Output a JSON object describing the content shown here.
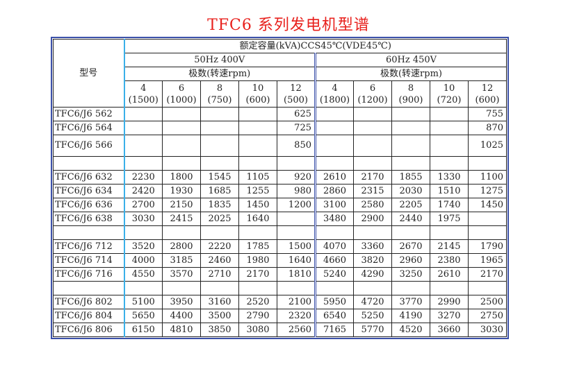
{
  "title": "TFC6  系列发电机型谱",
  "header": {
    "model": "型号",
    "capacity": "额定容量(kVA)CCS45℃(VDE45℃)",
    "freq50": "50Hz  400V",
    "freq60": "60Hz  450V",
    "poles50": "极数(转速rpm)",
    "poles60": "极数(转速rpm)",
    "cols50": [
      [
        "4",
        "(1500)"
      ],
      [
        "6",
        "(1000)"
      ],
      [
        "8",
        "(750)"
      ],
      [
        "10",
        "(600)"
      ],
      [
        "12",
        "(500)"
      ]
    ],
    "cols60": [
      [
        "4",
        "(1800)"
      ],
      [
        "6",
        "(1200)"
      ],
      [
        "8",
        "(900)"
      ],
      [
        "10",
        "(720)"
      ],
      [
        "12",
        "(600)"
      ]
    ]
  },
  "rows": [
    {
      "model": "TFC6/J6  562",
      "v50": [
        "",
        "",
        "",
        "",
        "625"
      ],
      "v60": [
        "",
        "",
        "",
        "",
        "755"
      ]
    },
    {
      "model": "TFC6/J6  564",
      "v50": [
        "",
        "",
        "",
        "",
        "725"
      ],
      "v60": [
        "",
        "",
        "",
        "",
        "870"
      ]
    },
    {
      "model": "TFC6/J6  566",
      "v50": [
        "",
        "",
        "",
        "",
        "850"
      ],
      "v60": [
        "",
        "",
        "",
        "",
        "1025"
      ],
      "tall": true
    },
    {
      "model": "",
      "v50": [
        "",
        "",
        "",
        "",
        ""
      ],
      "v60": [
        "",
        "",
        "",
        "",
        ""
      ]
    },
    {
      "model": "TFC6/J6  632",
      "v50": [
        "2230",
        "1800",
        "1545",
        "1105",
        "920"
      ],
      "v60": [
        "2610",
        "2170",
        "1855",
        "1330",
        "1100"
      ]
    },
    {
      "model": "TFC6/J6  634",
      "v50": [
        "2420",
        "1930",
        "1685",
        "1255",
        "980"
      ],
      "v60": [
        "2860",
        "2315",
        "2030",
        "1510",
        "1275"
      ]
    },
    {
      "model": "TFC6/J6  636",
      "v50": [
        "2700",
        "2150",
        "1835",
        "1450",
        "1200"
      ],
      "v60": [
        "3100",
        "2580",
        "2205",
        "1740",
        "1450"
      ]
    },
    {
      "model": "TFC6/J6  638",
      "v50": [
        "3030",
        "2415",
        "2025",
        "1640",
        ""
      ],
      "v60": [
        "3480",
        "2900",
        "2440",
        "1975",
        ""
      ]
    },
    {
      "model": "",
      "v50": [
        "",
        "",
        "",
        "",
        ""
      ],
      "v60": [
        "",
        "",
        "",
        "",
        ""
      ]
    },
    {
      "model": "TFC6/J6  712",
      "v50": [
        "3520",
        "2800",
        "2220",
        "1785",
        "1500"
      ],
      "v60": [
        "4070",
        "3360",
        "2670",
        "2145",
        "1790"
      ]
    },
    {
      "model": "TFC6/J6  714",
      "v50": [
        "4000",
        "3185",
        "2460",
        "1980",
        "1640"
      ],
      "v60": [
        "4660",
        "3820",
        "2960",
        "2380",
        "1965"
      ]
    },
    {
      "model": "TFC6/J6  716",
      "v50": [
        "4550",
        "3570",
        "2710",
        "2170",
        "1810"
      ],
      "v60": [
        "5240",
        "4290",
        "3250",
        "2610",
        "2170"
      ]
    },
    {
      "model": "",
      "v50": [
        "",
        "",
        "",
        "",
        ""
      ],
      "v60": [
        "",
        "",
        "",
        "",
        ""
      ]
    },
    {
      "model": "TFC6/J6  802",
      "v50": [
        "5100",
        "3950",
        "3160",
        "2520",
        "2100"
      ],
      "v60": [
        "5950",
        "4720",
        "3770",
        "2990",
        "2500"
      ]
    },
    {
      "model": "TFC6/J6  804",
      "v50": [
        "5650",
        "4400",
        "3500",
        "2790",
        "2320"
      ],
      "v60": [
        "6540",
        "5250",
        "4190",
        "3270",
        "2750"
      ]
    },
    {
      "model": "TFC6/J6  806",
      "v50": [
        "6150",
        "4810",
        "3850",
        "3080",
        "2560"
      ],
      "v60": [
        "7165",
        "5770",
        "4520",
        "3660",
        "3030"
      ]
    }
  ]
}
